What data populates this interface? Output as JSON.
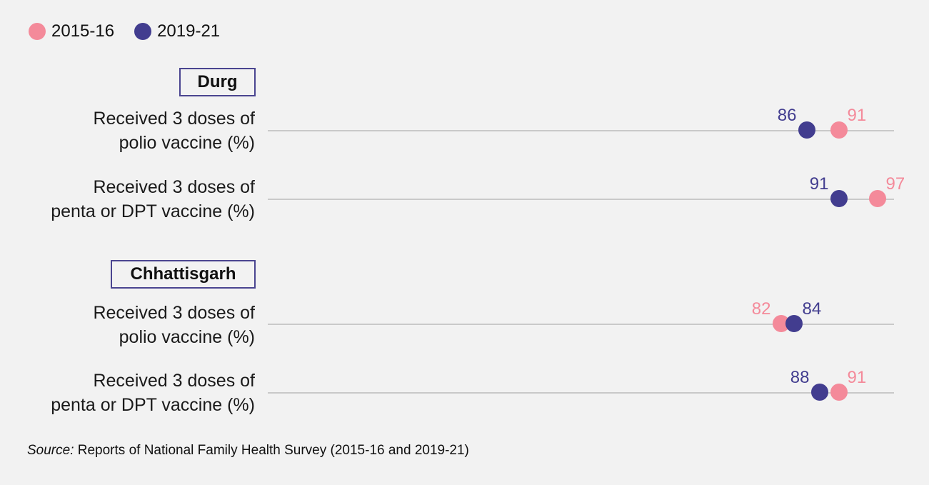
{
  "legend": {
    "items": [
      {
        "label": "2015-16",
        "color": "#f48a9a"
      },
      {
        "label": "2019-21",
        "color": "#423d8f"
      }
    ]
  },
  "chart_data": {
    "type": "scatter",
    "series": [
      {
        "name": "2015-16",
        "color": "#f48a9a"
      },
      {
        "name": "2019-21",
        "color": "#423d8f"
      }
    ],
    "groups": [
      {
        "region": "Durg",
        "rows": [
          {
            "label_line1": "Received 3 doses of",
            "label_line2": "polio vaccine (%)",
            "v2015": 91,
            "v2019": 86
          },
          {
            "label_line1": "Received 3 doses of",
            "label_line2": "penta or DPT vaccine (%)",
            "v2015": 97,
            "v2019": 91
          }
        ]
      },
      {
        "region": "Chhattisgarh",
        "rows": [
          {
            "label_line1": "Received 3 doses of",
            "label_line2": "polio vaccine (%)",
            "v2015": 82,
            "v2019": 84
          },
          {
            "label_line1": "Received 3 doses of",
            "label_line2": "penta or DPT vaccine (%)",
            "v2015": 91,
            "v2019": 88
          }
        ]
      }
    ]
  },
  "source": {
    "prefix": "Source:",
    "text": " Reports of National Family Health Survey (2015-16 and 2019-21)"
  }
}
